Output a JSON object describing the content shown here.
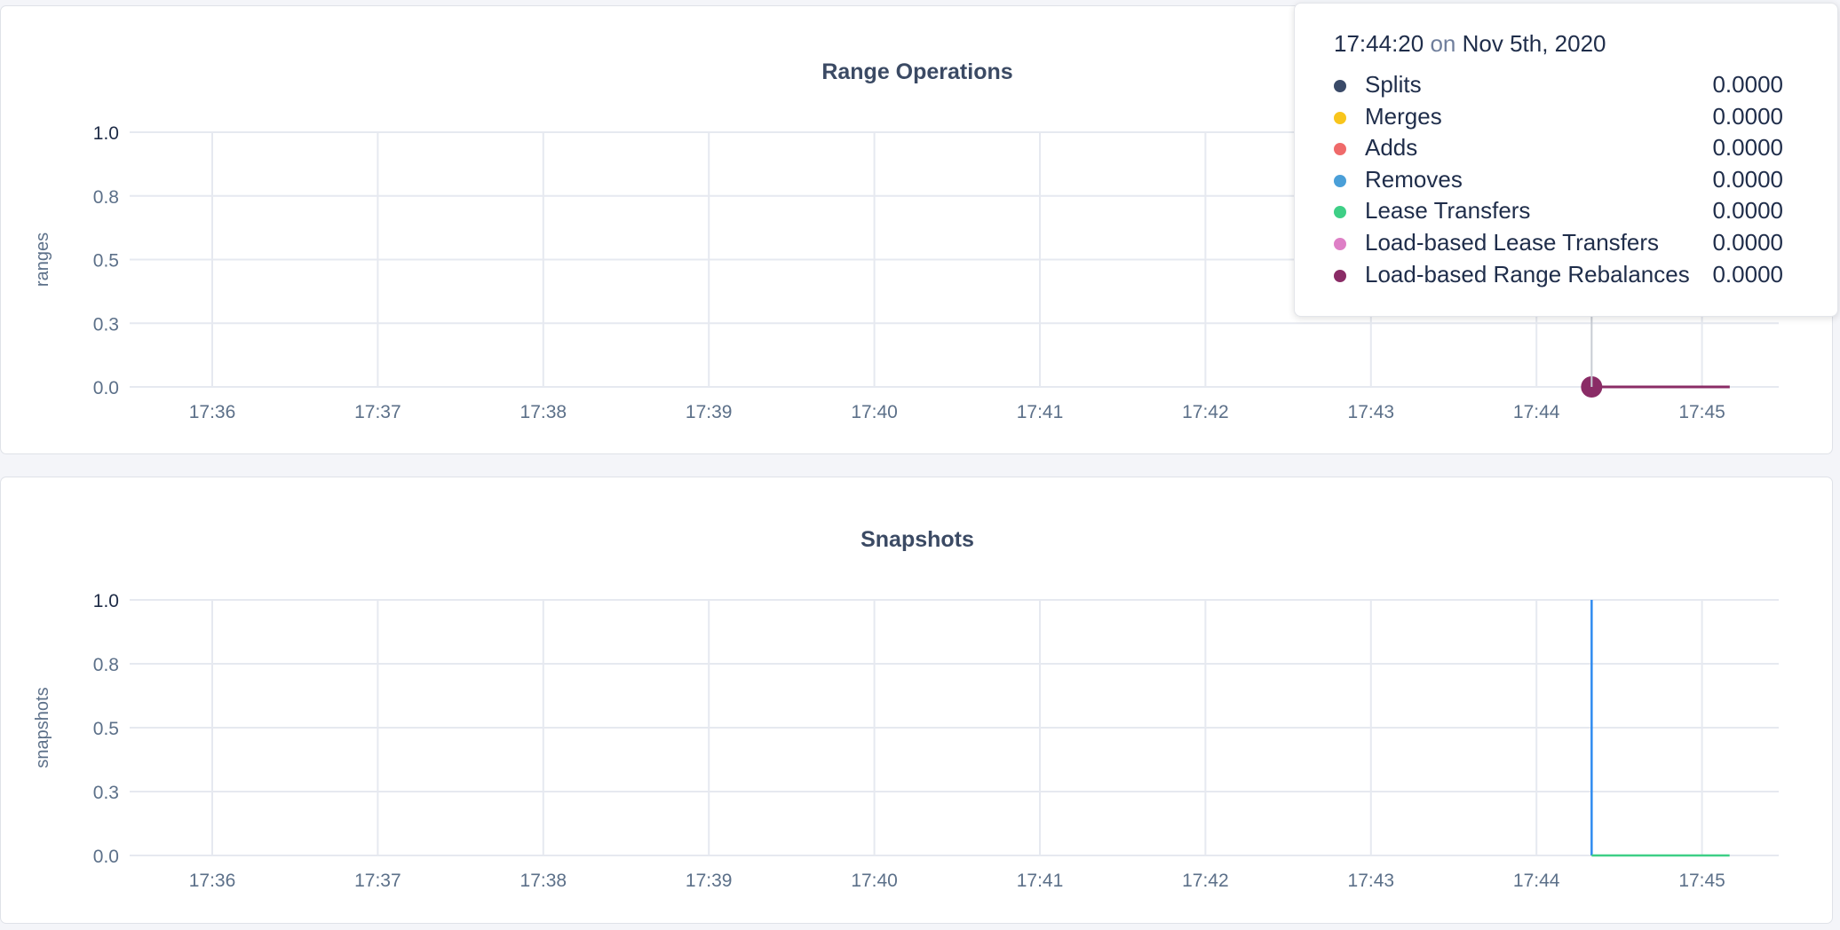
{
  "chart_data": [
    {
      "type": "line",
      "title": "Range Operations",
      "ylabel": "ranges",
      "ylim": [
        0,
        1.0
      ],
      "yticks": [
        {
          "v": 0,
          "label": "0.0"
        },
        {
          "v": 0.25,
          "label": "0.3"
        },
        {
          "v": 0.5,
          "label": "0.5"
        },
        {
          "v": 0.75,
          "label": "0.8"
        },
        {
          "v": 1.0,
          "label": "1.0"
        }
      ],
      "xlim": [
        "17:35:35",
        "17:45:55"
      ],
      "xticks": [
        "17:36",
        "17:37",
        "17:38",
        "17:39",
        "17:40",
        "17:41",
        "17:42",
        "17:43",
        "17:44",
        "17:45"
      ],
      "grid": true,
      "series": [
        {
          "name": "Splits",
          "color": "#3a4a68",
          "x": [
            "17:44:20",
            "17:45:10"
          ],
          "y": [
            0,
            0
          ]
        },
        {
          "name": "Merges",
          "color": "#f8c51c",
          "x": [
            "17:44:20",
            "17:45:10"
          ],
          "y": [
            0,
            0
          ]
        },
        {
          "name": "Adds",
          "color": "#ef6a6a",
          "x": [
            "17:44:20",
            "17:45:10"
          ],
          "y": [
            0,
            0
          ]
        },
        {
          "name": "Removes",
          "color": "#4a9fd8",
          "x": [
            "17:44:20",
            "17:45:10"
          ],
          "y": [
            0,
            0
          ]
        },
        {
          "name": "Lease Transfers",
          "color": "#3ecf86",
          "x": [
            "17:44:20",
            "17:45:10"
          ],
          "y": [
            0,
            0
          ]
        },
        {
          "name": "Load-based Lease Transfers",
          "color": "#de7fc6",
          "x": [
            "17:44:20",
            "17:45:10"
          ],
          "y": [
            0,
            0
          ]
        },
        {
          "name": "Load-based Range Rebalances",
          "color": "#8a2c66",
          "x": [
            "17:44:20",
            "17:45:10"
          ],
          "y": [
            0,
            0
          ]
        }
      ],
      "hover": {
        "time": "17:44:20",
        "on": "on",
        "date": "Nov 5th, 2020",
        "x": "17:44:20",
        "values": [
          "0.0000",
          "0.0000",
          "0.0000",
          "0.0000",
          "0.0000",
          "0.0000",
          "0.0000"
        ]
      }
    },
    {
      "type": "line",
      "title": "Snapshots",
      "ylabel": "snapshots",
      "ylim": [
        0,
        1.0
      ],
      "yticks": [
        {
          "v": 0,
          "label": "0.0"
        },
        {
          "v": 0.25,
          "label": "0.3"
        },
        {
          "v": 0.5,
          "label": "0.5"
        },
        {
          "v": 0.75,
          "label": "0.8"
        },
        {
          "v": 1.0,
          "label": "1.0"
        }
      ],
      "xlim": [
        "17:35:35",
        "17:45:55"
      ],
      "xticks": [
        "17:36",
        "17:37",
        "17:38",
        "17:39",
        "17:40",
        "17:41",
        "17:42",
        "17:43",
        "17:44",
        "17:45"
      ],
      "grid": true,
      "series": [
        {
          "color": "#2f8bf0",
          "x": [
            "17:44:20",
            "17:44:20"
          ],
          "y": [
            1,
            0
          ]
        },
        {
          "color": "#3ecf86",
          "x": [
            "17:44:20",
            "17:45:10"
          ],
          "y": [
            0,
            0
          ]
        }
      ]
    }
  ]
}
